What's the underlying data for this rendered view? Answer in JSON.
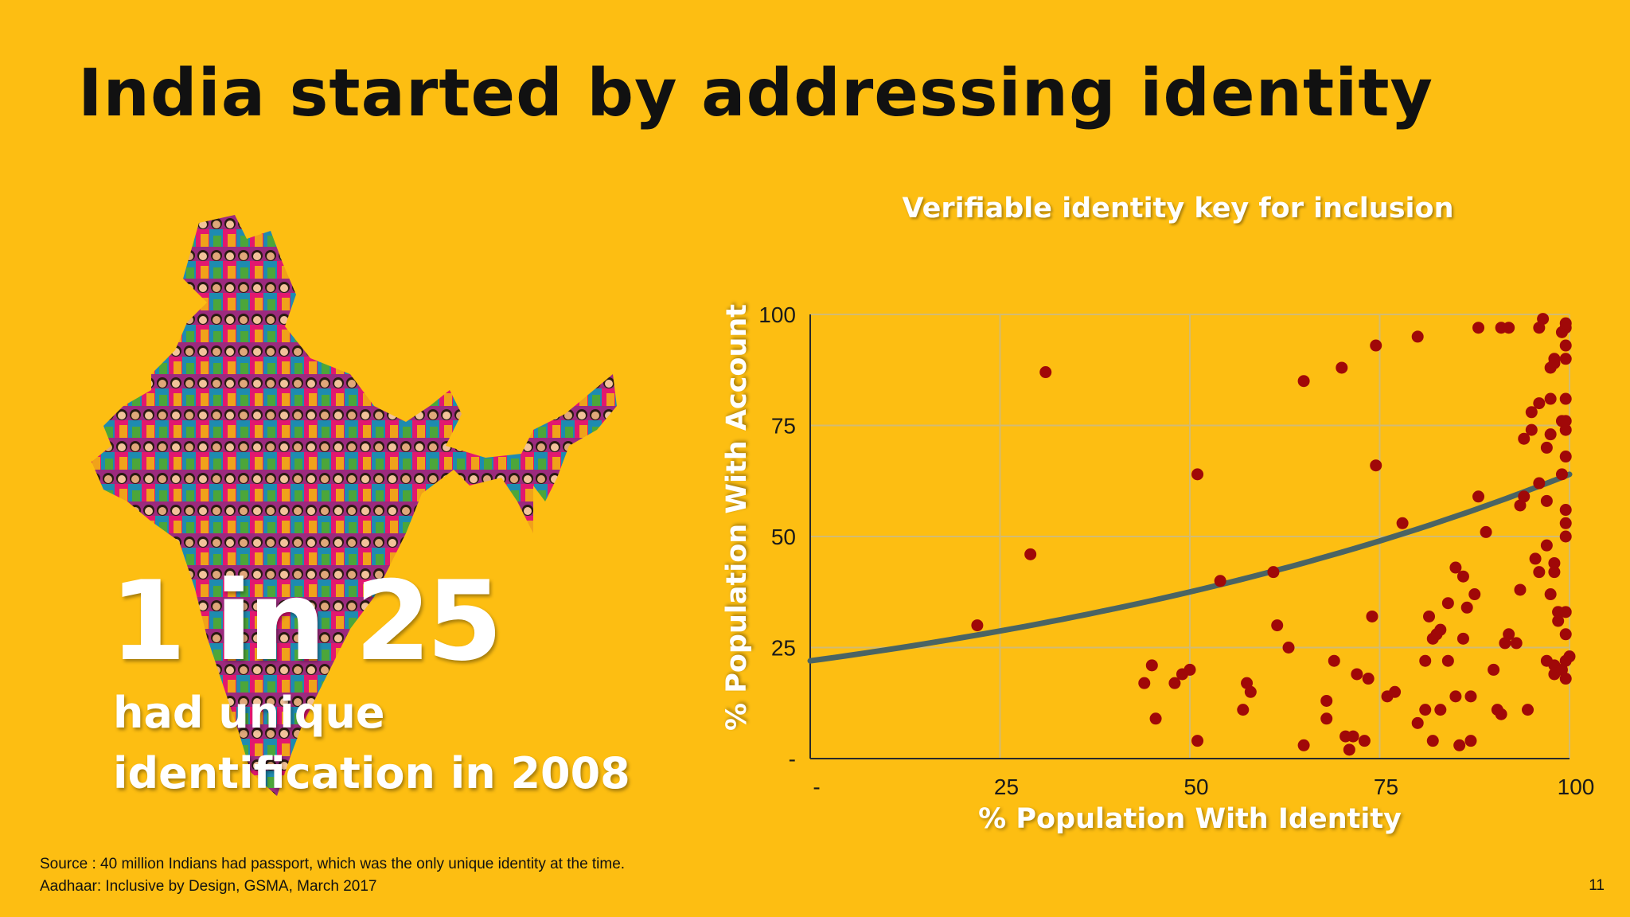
{
  "slide": {
    "title": "India started by addressing identity",
    "stat_value": "1 in 25",
    "stat_caption_line1": "had unique",
    "stat_caption_line2": "identification in 2008",
    "source_line1": "Source : 40 million Indians had passport, which was the only unique identity at the time.",
    "source_line2": "Aadhaar: Inclusive by Design, GSMA, March 2017",
    "page_number": "11"
  },
  "colors": {
    "background": "#FDBE12",
    "title_text": "#111111",
    "point": "#A00808",
    "trend": "#4A6464",
    "grid": "#D2BB72",
    "axis": "#2A2A2A"
  },
  "chart_data": {
    "type": "scatter",
    "title": "Verifiable identity key for inclusion",
    "xlabel": "% Population With Identity",
    "ylabel": "% Population With Account",
    "xlim": [
      0,
      100
    ],
    "ylim": [
      0,
      100
    ],
    "x_ticks": [
      {
        "value": 0,
        "label": "-"
      },
      {
        "value": 25,
        "label": "25"
      },
      {
        "value": 50,
        "label": "50"
      },
      {
        "value": 75,
        "label": "75"
      },
      {
        "value": 100,
        "label": "100"
      }
    ],
    "y_ticks": [
      {
        "value": 0,
        "label": "-"
      },
      {
        "value": 25,
        "label": "25"
      },
      {
        "value": 50,
        "label": "50"
      },
      {
        "value": 75,
        "label": "75"
      },
      {
        "value": 100,
        "label": "100"
      }
    ],
    "grid": true,
    "trendline": {
      "type": "exponential",
      "x": [
        0,
        100
      ],
      "y": [
        22,
        64
      ]
    },
    "points": [
      [
        22,
        30
      ],
      [
        29,
        46
      ],
      [
        31,
        87
      ],
      [
        44,
        17
      ],
      [
        45,
        21
      ],
      [
        45.5,
        9
      ],
      [
        48,
        17
      ],
      [
        49,
        19
      ],
      [
        50,
        20
      ],
      [
        51,
        64
      ],
      [
        51,
        4
      ],
      [
        54,
        40
      ],
      [
        57,
        11
      ],
      [
        57.5,
        17
      ],
      [
        58,
        15
      ],
      [
        61,
        42
      ],
      [
        61.5,
        30
      ],
      [
        63,
        25
      ],
      [
        65,
        3
      ],
      [
        65,
        85
      ],
      [
        68,
        13
      ],
      [
        68,
        9
      ],
      [
        69,
        22
      ],
      [
        70,
        88
      ],
      [
        70.5,
        5
      ],
      [
        71,
        2
      ],
      [
        71.5,
        5
      ],
      [
        72,
        19
      ],
      [
        73,
        4
      ],
      [
        73.5,
        18
      ],
      [
        74,
        32
      ],
      [
        74.5,
        93
      ],
      [
        74.5,
        66
      ],
      [
        76,
        14
      ],
      [
        77,
        15
      ],
      [
        78,
        53
      ],
      [
        80,
        95
      ],
      [
        80,
        8
      ],
      [
        81,
        22
      ],
      [
        81,
        11
      ],
      [
        81.5,
        32
      ],
      [
        82,
        27
      ],
      [
        82,
        4
      ],
      [
        82.5,
        28
      ],
      [
        83,
        11
      ],
      [
        83,
        29
      ],
      [
        84,
        35
      ],
      [
        84,
        22
      ],
      [
        85,
        43
      ],
      [
        85,
        14
      ],
      [
        85.5,
        3
      ],
      [
        86,
        41
      ],
      [
        86,
        27
      ],
      [
        86.5,
        34
      ],
      [
        87,
        14
      ],
      [
        87,
        4
      ],
      [
        87.5,
        37
      ],
      [
        88,
        59
      ],
      [
        88,
        97
      ],
      [
        89,
        51
      ],
      [
        90,
        20
      ],
      [
        90.5,
        11
      ],
      [
        91,
        10
      ],
      [
        91,
        97
      ],
      [
        91.5,
        26
      ],
      [
        92,
        28
      ],
      [
        92,
        97
      ],
      [
        93,
        26
      ],
      [
        93.5,
        38
      ],
      [
        93.5,
        57
      ],
      [
        94,
        59
      ],
      [
        94,
        72
      ],
      [
        94.5,
        11
      ],
      [
        95,
        74
      ],
      [
        95,
        78
      ],
      [
        95.5,
        45
      ],
      [
        96,
        42
      ],
      [
        96,
        62
      ],
      [
        96,
        80
      ],
      [
        96,
        97
      ],
      [
        96.5,
        99
      ],
      [
        97,
        22
      ],
      [
        97,
        48
      ],
      [
        97,
        58
      ],
      [
        97,
        70
      ],
      [
        97.5,
        81
      ],
      [
        97.5,
        73
      ],
      [
        97.5,
        88
      ],
      [
        97.5,
        37
      ],
      [
        98,
        19
      ],
      [
        98,
        21
      ],
      [
        98,
        44
      ],
      [
        98,
        42
      ],
      [
        98,
        90
      ],
      [
        98,
        89
      ],
      [
        98.5,
        31
      ],
      [
        98.5,
        33
      ],
      [
        98.5,
        33
      ],
      [
        99,
        20
      ],
      [
        99,
        96
      ],
      [
        99,
        76
      ],
      [
        99,
        64
      ],
      [
        99.5,
        22
      ],
      [
        99.5,
        28
      ],
      [
        99.5,
        33
      ],
      [
        99.5,
        53
      ],
      [
        99.5,
        56
      ],
      [
        99.5,
        68
      ],
      [
        99.5,
        74
      ],
      [
        99.5,
        76
      ],
      [
        99.5,
        81
      ],
      [
        99.5,
        90
      ],
      [
        99.5,
        93
      ],
      [
        99.5,
        97
      ],
      [
        99.5,
        98
      ],
      [
        99.5,
        50
      ],
      [
        99.5,
        18
      ],
      [
        100,
        23
      ]
    ]
  }
}
